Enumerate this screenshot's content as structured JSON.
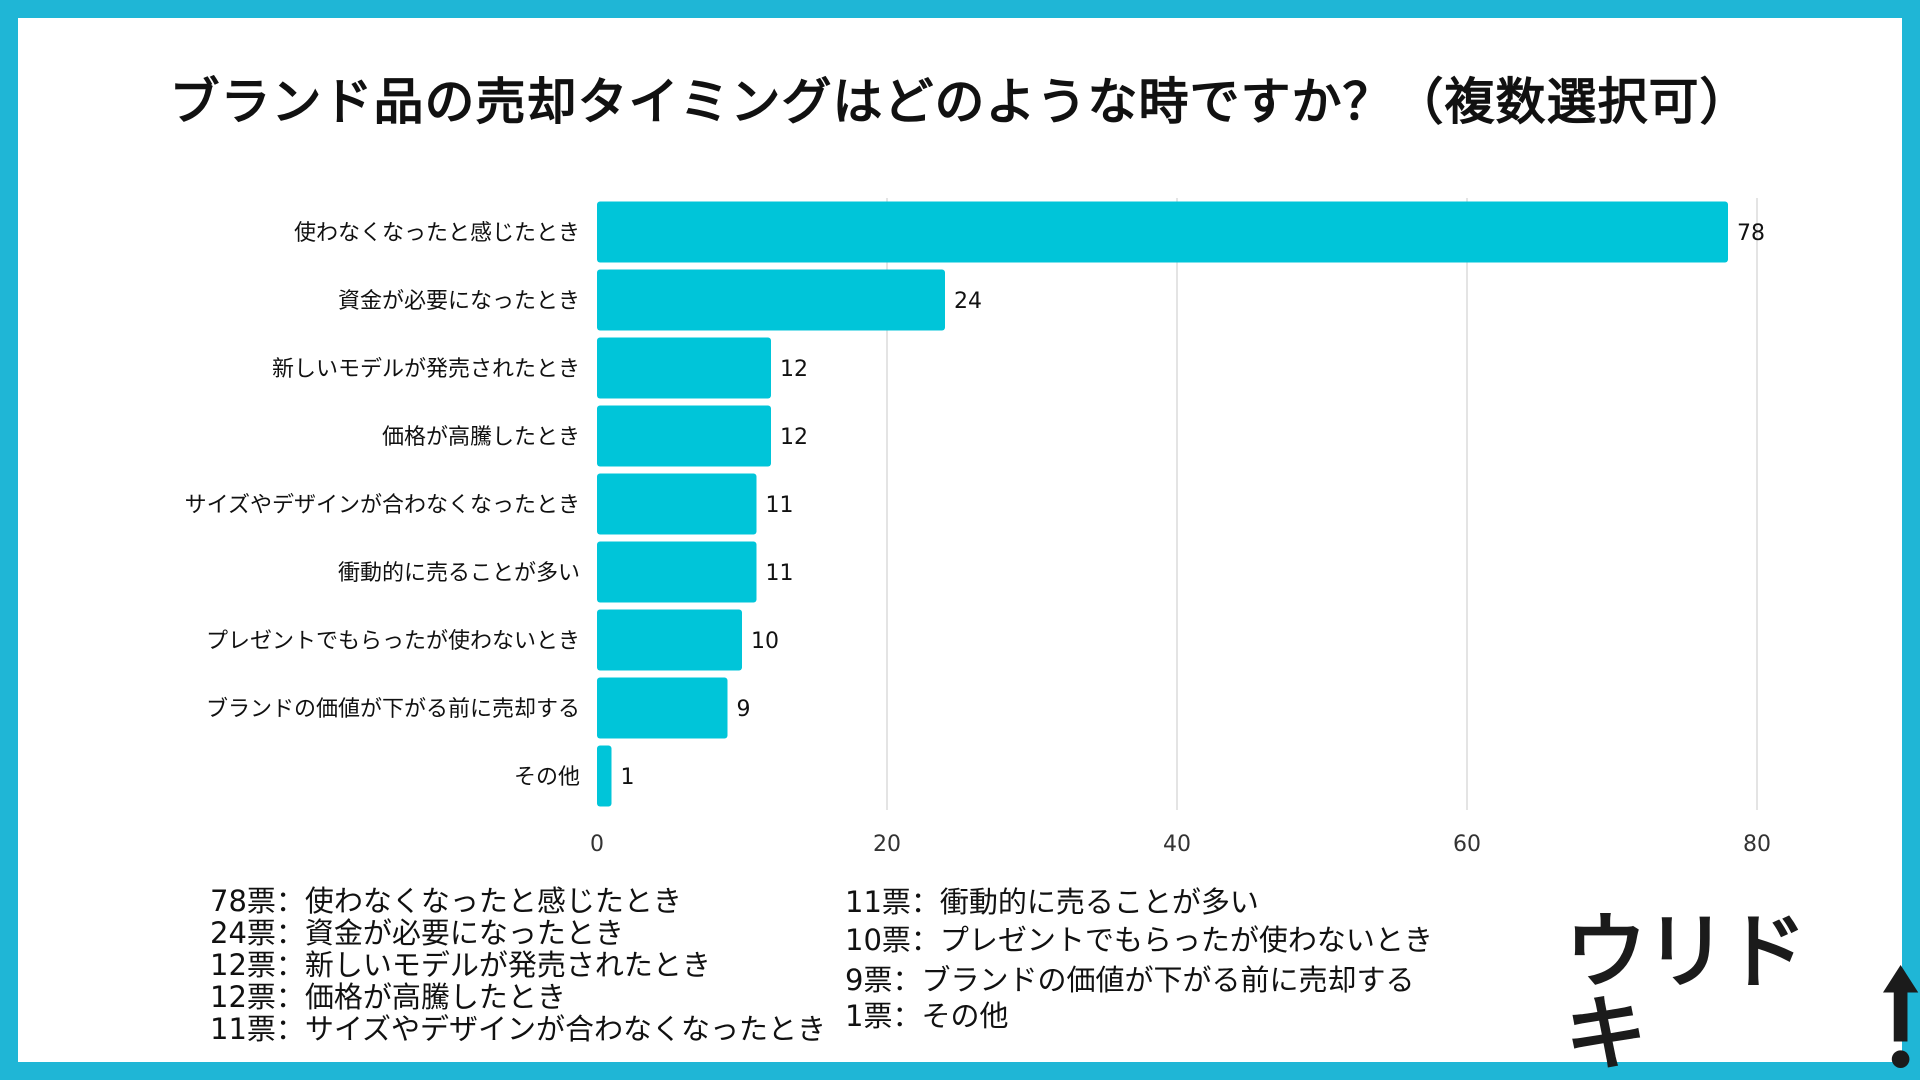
{
  "title": "ブランド品の売却タイミングはどのような時ですか？（複数選択可）",
  "colors": {
    "border": "#1fb6d6",
    "bar": "#00c5d9",
    "grid": "#dcdcdc",
    "text": "#111111"
  },
  "chart_data": {
    "type": "bar",
    "orientation": "horizontal",
    "title": "ブランド品の売却タイミングはどのような時ですか？（複数選択可）",
    "categories": [
      "使わなくなったと感じたとき",
      "資金が必要になったとき",
      "新しいモデルが発売されたとき",
      "価格が高騰したとき",
      "サイズやデザインが合わなくなったとき",
      "衝動的に売ることが多い",
      "プレゼントでもらったが使わないとき",
      "ブランドの価値が下がる前に売却する",
      "その他"
    ],
    "values": [
      78,
      24,
      12,
      12,
      11,
      11,
      10,
      9,
      1
    ],
    "xlim": [
      0,
      80
    ],
    "xticks": [
      0,
      20,
      40,
      60,
      80
    ],
    "xlabel": "",
    "ylabel": "",
    "grid": true,
    "data_labels": true
  },
  "legend": {
    "left": [
      "78票：使わなくなったと感じたとき",
      "24票：資金が必要になったとき",
      "12票：新しいモデルが発売されたとき",
      "12票：価格が高騰したとき",
      "11票：サイズやデザインが合わなくなったとき"
    ],
    "right": [
      "11票：衝動的に売ることが多い",
      "10票：プレゼントでもらったが使わないとき",
      "9票：ブランドの価値が下がる前に売却する",
      "1票：その他"
    ]
  },
  "logo": {
    "text": "ウリドキ",
    "icon": "up-arrow-icon"
  }
}
